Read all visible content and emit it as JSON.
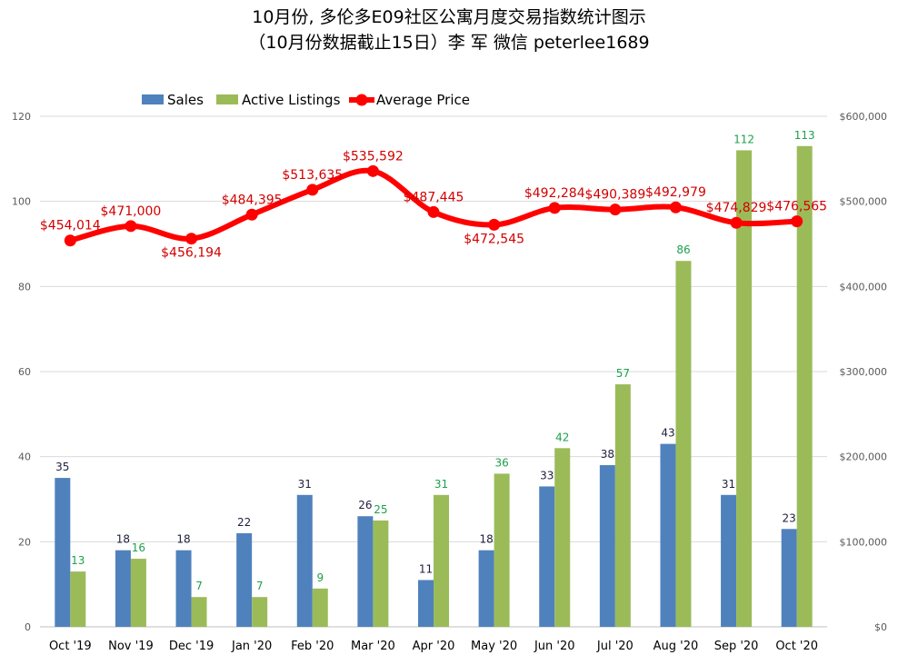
{
  "chart_data": {
    "type": "bar",
    "title": "10月份, 多伦多E09社区公寓月度交易指数统计图示",
    "subtitle": "（10月份数据截止15日）李 军  微信  peterlee1689",
    "categories": [
      "Oct '19",
      "Nov '19",
      "Dec '19",
      "Jan '20",
      "Feb '20",
      "Mar '20",
      "Apr '20",
      "May '20",
      "Jun '20",
      "Jul '20",
      "Aug '20",
      "Sep '20",
      "Oct '20"
    ],
    "series": [
      {
        "name": "Sales",
        "type": "bar",
        "axis": "left",
        "color": "#4f81bd",
        "values": [
          35,
          18,
          18,
          22,
          31,
          26,
          11,
          18,
          33,
          38,
          43,
          31,
          23
        ]
      },
      {
        "name": "Active Listings",
        "type": "bar",
        "axis": "left",
        "color": "#9bbb59",
        "values": [
          13,
          16,
          7,
          7,
          9,
          25,
          31,
          36,
          42,
          57,
          86,
          112,
          113
        ]
      },
      {
        "name": "Average Price",
        "type": "line",
        "axis": "right",
        "color": "#ff0000",
        "values": [
          454014,
          471000,
          456194,
          484395,
          513635,
          535592,
          487445,
          472545,
          492284,
          490389,
          492979,
          474829,
          476565
        ],
        "labels": [
          "$454,014",
          "$471,000",
          "$456,194",
          "$484,395",
          "$513,635",
          "$535,592",
          "$487,445",
          "$472,545",
          "$492,284",
          "$490,389",
          "$492,979",
          "$474,829",
          "$476,565"
        ]
      }
    ],
    "y_left": {
      "min": 0,
      "max": 120,
      "ticks": [
        "0",
        "20",
        "40",
        "60",
        "80",
        "100",
        "120"
      ]
    },
    "y_right": {
      "min": 0,
      "max": 600000,
      "ticks": [
        "$0",
        "$100,000",
        "$200,000",
        "$300,000",
        "$400,000",
        "$500,000",
        "$600,000"
      ]
    },
    "grid": true,
    "legend_position": "top-left"
  }
}
